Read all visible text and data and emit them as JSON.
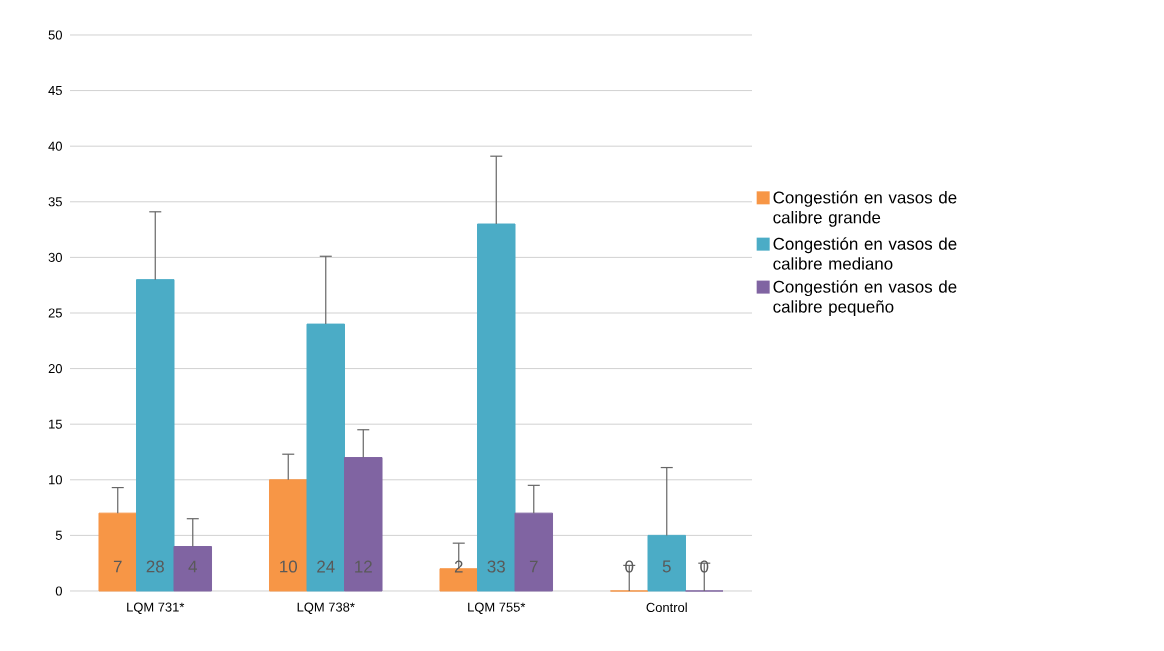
{
  "chart_data": {
    "type": "bar",
    "categories": [
      "LQM 731*",
      "LQM 738*",
      "LQM 755*",
      "Control"
    ],
    "series": [
      {
        "name": "Congestión en vasos de calibre grande",
        "color": "#f79646",
        "values": [
          7,
          10,
          2,
          0
        ],
        "errors": [
          [
            7,
            9.3
          ],
          [
            10,
            12.3
          ],
          [
            2,
            4.3
          ],
          [
            0,
            2.3
          ]
        ]
      },
      {
        "name": "Congestión en vasos de calibre mediano",
        "color": "#4bacc6",
        "values": [
          28,
          24,
          33,
          5
        ],
        "errors": [
          [
            28,
            34.1
          ],
          [
            24,
            30.1
          ],
          [
            33,
            39.1
          ],
          [
            5,
            11.1
          ]
        ]
      },
      {
        "name": "Congestión en vasos de calibre pequeño",
        "color": "#8064a2",
        "values": [
          4,
          12,
          7,
          0
        ],
        "errors": [
          [
            4,
            6.5
          ],
          [
            12,
            14.5
          ],
          [
            7,
            9.5
          ],
          [
            0,
            2.5
          ]
        ]
      }
    ],
    "ylim": [
      0,
      50
    ],
    "yticks": [
      0,
      5,
      10,
      15,
      20,
      25,
      30,
      35,
      40,
      45,
      50
    ],
    "grid": "y",
    "legend": "right",
    "data_labels": true
  }
}
